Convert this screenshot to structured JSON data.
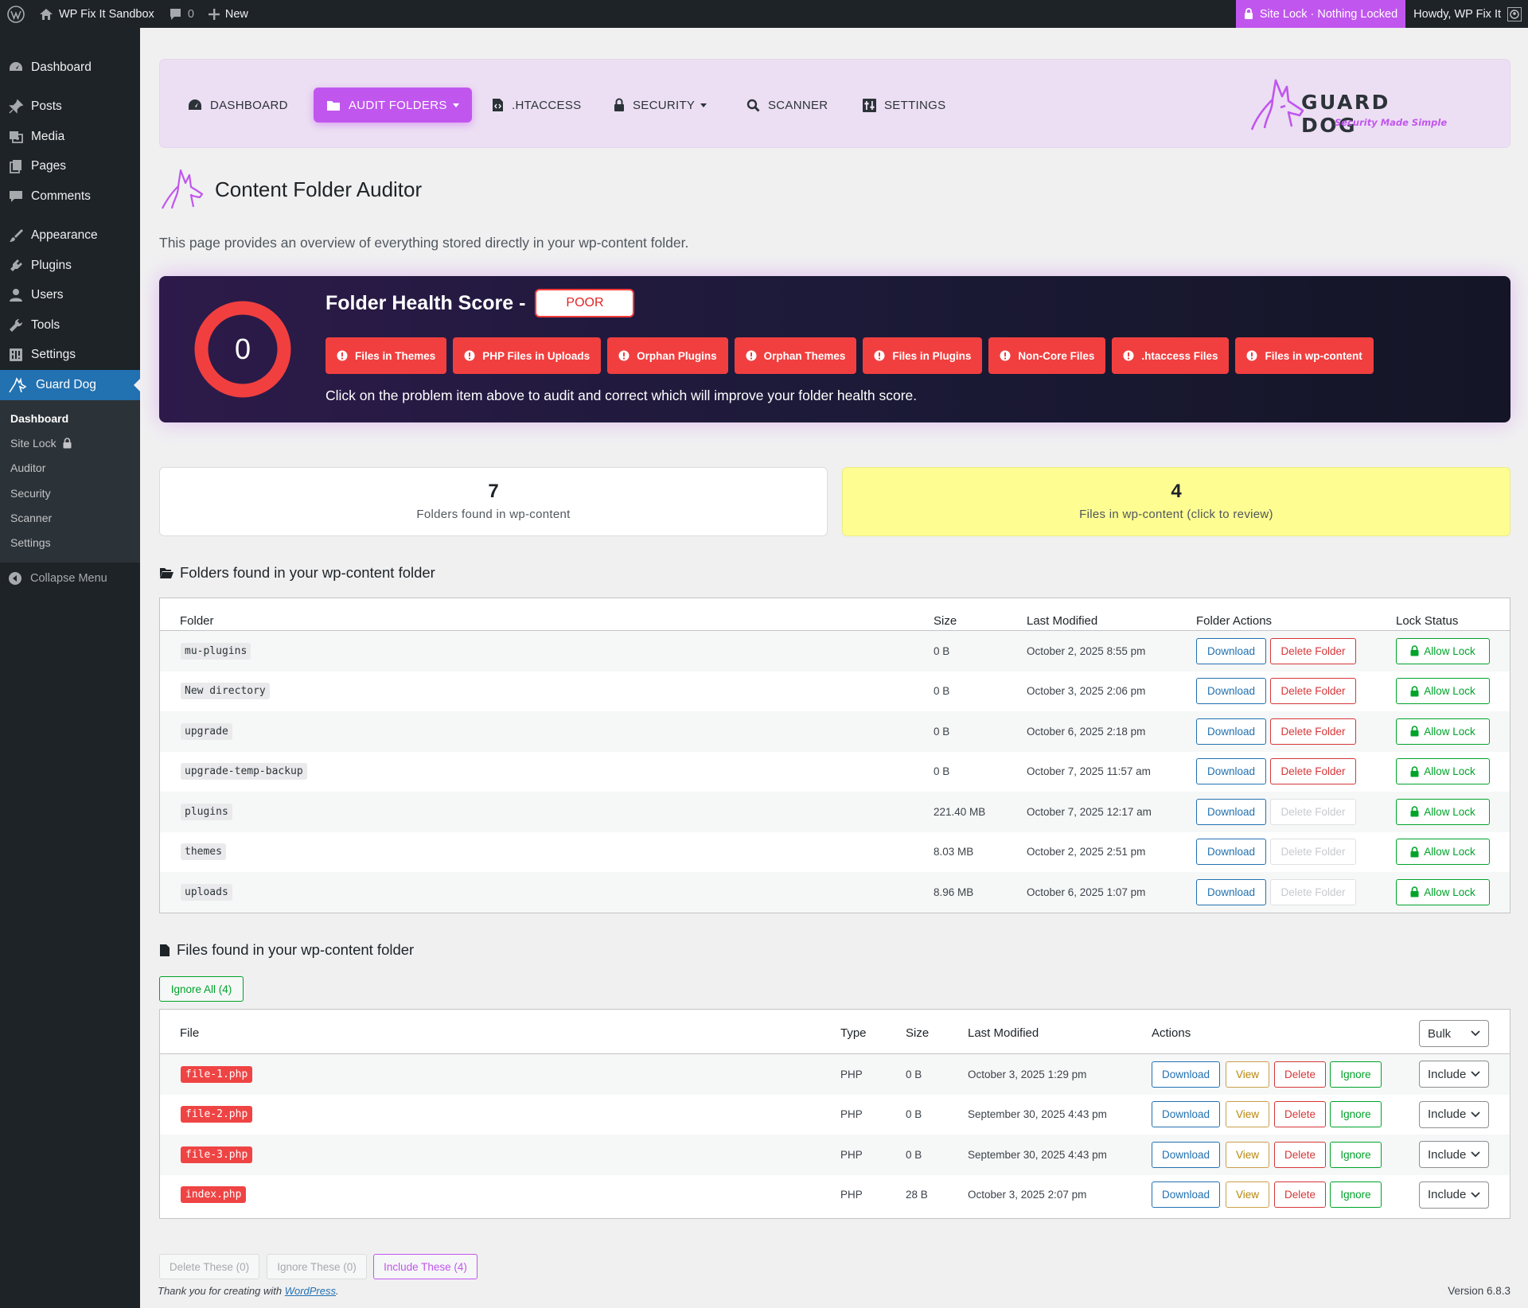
{
  "admin_bar": {
    "site_name": "WP Fix It Sandbox",
    "comments_count": "0",
    "new_label": "New",
    "site_lock": "Site Lock · Nothing Locked",
    "howdy": "Howdy, WP Fix It"
  },
  "sidebar": {
    "items": [
      {
        "label": "Dashboard",
        "icon": "dashboard-icon"
      },
      {
        "label": "Posts",
        "icon": "pin-icon"
      },
      {
        "label": "Media",
        "icon": "media-icon"
      },
      {
        "label": "Pages",
        "icon": "pages-icon"
      },
      {
        "label": "Comments",
        "icon": "comment-icon"
      },
      {
        "label": "Appearance",
        "icon": "brush-icon"
      },
      {
        "label": "Plugins",
        "icon": "plug-icon"
      },
      {
        "label": "Users",
        "icon": "user-icon"
      },
      {
        "label": "Tools",
        "icon": "wrench-icon"
      },
      {
        "label": "Settings",
        "icon": "settings-icon"
      },
      {
        "label": "Guard Dog",
        "icon": "guard-dog-icon"
      }
    ],
    "submenu": [
      "Dashboard",
      "Site Lock",
      "Auditor",
      "Security",
      "Scanner",
      "Settings"
    ],
    "collapse": "Collapse Menu"
  },
  "nav": {
    "dashboard": "DASHBOARD",
    "audit_folders": "AUDIT FOLDERS",
    "htaccess": ".HTACCESS",
    "security": "SECURITY",
    "scanner": "SCANNER",
    "settings": "SETTINGS",
    "logo_name": "GUARD DOG",
    "logo_tagline": "Security Made Simple"
  },
  "page": {
    "title": "Content Folder Auditor",
    "intro": "This page provides an overview of everything stored directly in your wp-content folder."
  },
  "health": {
    "score": "0",
    "score_fraction": 0,
    "title": "Folder Health Score -",
    "rating": "POOR",
    "problems": [
      "Files in Themes",
      "PHP Files in Uploads",
      "Orphan Plugins",
      "Orphan Themes",
      "Files in Plugins",
      "Non-Core Files",
      ".htaccess Files",
      "Files in wp-content"
    ],
    "help": "Click on the problem item above to audit and correct which will improve your folder health score.",
    "colors": {
      "ring": "#f13f3f",
      "accent": "#c156ee"
    }
  },
  "stats": {
    "folders_count": "7",
    "folders_label": "Folders found in wp-content",
    "files_count": "4",
    "files_label": "Files in wp-content (click to review)"
  },
  "folders_section": {
    "title": "Folders found in your wp-content folder",
    "headers": [
      "Folder",
      "Size",
      "Last Modified",
      "Folder Actions",
      "Lock Status"
    ],
    "download_label": "Download",
    "delete_label": "Delete Folder",
    "lock_label": "Allow Lock",
    "rows": [
      {
        "name": "mu-plugins",
        "size": "0 B",
        "modified": "October 2, 2025 8:55 pm",
        "deletable": true
      },
      {
        "name": "New directory",
        "size": "0 B",
        "modified": "October 3, 2025 2:06 pm",
        "deletable": true
      },
      {
        "name": "upgrade",
        "size": "0 B",
        "modified": "October 6, 2025 2:18 pm",
        "deletable": true
      },
      {
        "name": "upgrade-temp-backup",
        "size": "0 B",
        "modified": "October 7, 2025 11:57 am",
        "deletable": true
      },
      {
        "name": "plugins",
        "size": "221.40 MB",
        "modified": "October 7, 2025 12:17 am",
        "deletable": false
      },
      {
        "name": "themes",
        "size": "8.03 MB",
        "modified": "October 2, 2025 2:51 pm",
        "deletable": false
      },
      {
        "name": "uploads",
        "size": "8.96 MB",
        "modified": "October 6, 2025 1:07 pm",
        "deletable": false
      }
    ]
  },
  "files_section": {
    "title": "Files found in your wp-content folder",
    "ignore_all": "Ignore All (4)",
    "headers": [
      "File",
      "Type",
      "Size",
      "Last Modified",
      "Actions"
    ],
    "bulk_label": "Bulk",
    "action_labels": {
      "download": "Download",
      "view": "View",
      "delete": "Delete",
      "ignore": "Ignore"
    },
    "rows": [
      {
        "name": "file-1.php",
        "type": "PHP",
        "size": "0 B",
        "modified": "October 3, 2025 1:29 pm",
        "mode": "Include"
      },
      {
        "name": "file-2.php",
        "type": "PHP",
        "size": "0 B",
        "modified": "September 30, 2025 4:43 pm",
        "mode": "Include"
      },
      {
        "name": "file-3.php",
        "type": "PHP",
        "size": "0 B",
        "modified": "September 30, 2025 4:43 pm",
        "mode": "Include"
      },
      {
        "name": "index.php",
        "type": "PHP",
        "size": "28 B",
        "modified": "October 3, 2025 2:07 pm",
        "mode": "Include"
      }
    ],
    "bottom_buttons": {
      "delete": "Delete These (0)",
      "ignore": "Ignore These (0)",
      "include": "Include These (4)"
    }
  },
  "footer": {
    "thanks_prefix": "Thank you for creating with ",
    "thanks_link": "WordPress",
    "thanks_suffix": ".",
    "version": "Version 6.8.3"
  }
}
